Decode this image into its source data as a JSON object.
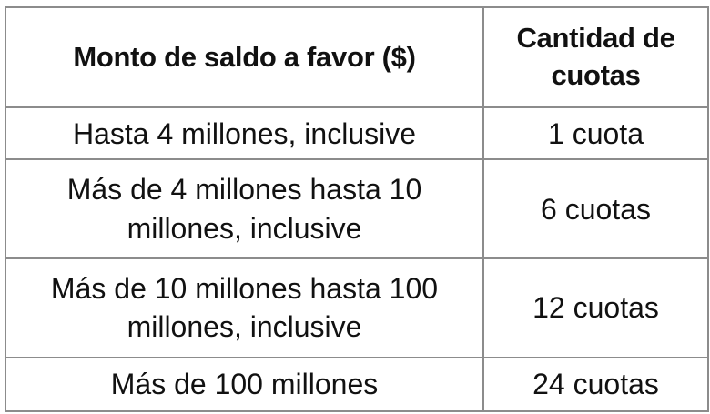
{
  "table": {
    "headers": [
      "Monto de saldo a favor ($)",
      "Cantidad de cuotas"
    ],
    "rows": [
      {
        "amount": "Hasta 4 millones, inclusive",
        "installments": "1 cuota"
      },
      {
        "amount": "Más de 4 millones hasta 10 millones, inclusive",
        "installments": "6 cuotas"
      },
      {
        "amount": "Más de 10 millones hasta 100 millones, inclusive",
        "installments": "12 cuotas"
      },
      {
        "amount": "Más de 100 millones",
        "installments": "24 cuotas"
      }
    ]
  },
  "colors": {
    "border": "#8c8c8c",
    "text": "#111111",
    "background": "#ffffff"
  }
}
